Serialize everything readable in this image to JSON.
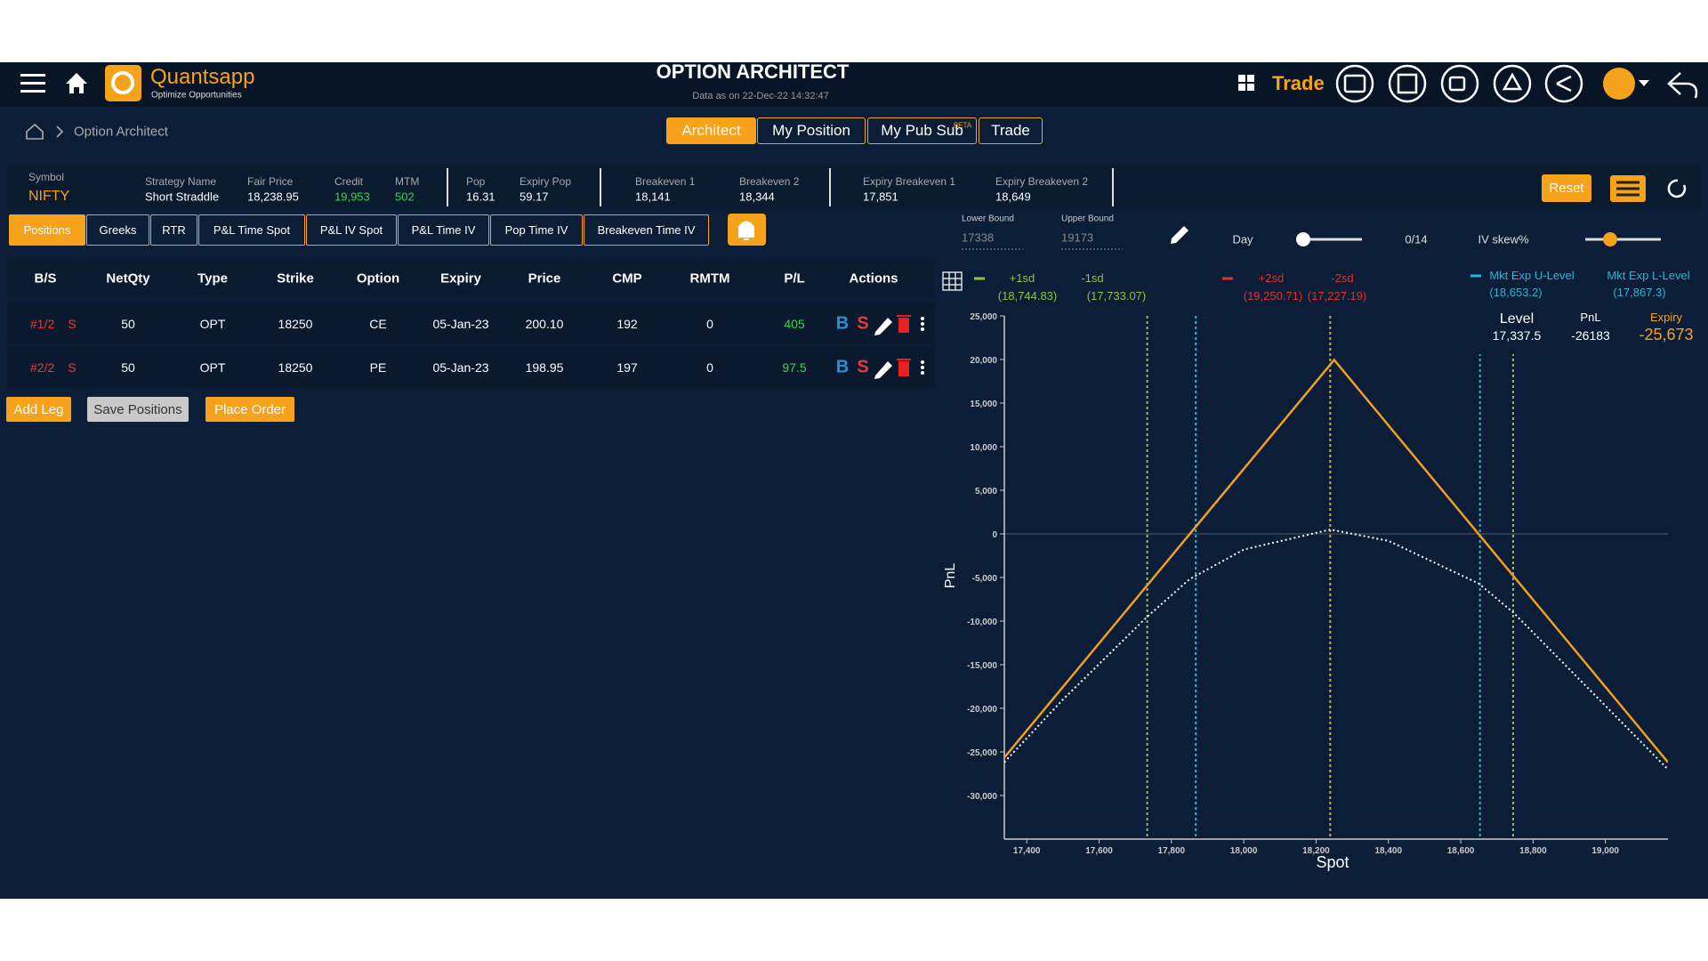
{
  "header": {
    "brand": "Quantsapp",
    "tagline": "Optimize Opportunities",
    "title": "OPTION ARCHITECT",
    "subtitle": "Data as on 22-Dec-22 14:32:47",
    "trade": "Trade"
  },
  "breadcrumb": "Option Architect",
  "tabs": [
    "Architect",
    "My Position",
    "My Pub Sub",
    "Trade"
  ],
  "beta": "BETA",
  "summary": [
    {
      "label": "Symbol",
      "value": "NIFTY"
    },
    {
      "label": "Strategy Name",
      "value": "Short Straddle"
    },
    {
      "label": "Fair Price",
      "value": "18,238.95"
    },
    {
      "label": "Credit",
      "value": "19,953"
    },
    {
      "label": "MTM",
      "value": "502"
    },
    {
      "label": "Pop",
      "value": "16.31"
    },
    {
      "label": "Expiry Pop",
      "value": "59.17"
    },
    {
      "label": "Breakeven 1",
      "value": "18,141"
    },
    {
      "label": "Breakeven 2",
      "value": "18,344"
    },
    {
      "label": "Expiry Breakeven 1",
      "value": "17,851"
    },
    {
      "label": "Expiry Breakeven 2",
      "value": "18,649"
    }
  ],
  "reset": "Reset",
  "subtabs": [
    "Positions",
    "Greeks",
    "RTR",
    "P&L Time Spot",
    "P&L IV Spot",
    "P&L Time IV",
    "Pop Time IV",
    "Breakeven Time IV"
  ],
  "controls": {
    "lower_label": "Lower Bound",
    "lower_value": "17338",
    "upper_label": "Upper Bound",
    "upper_value": "19173",
    "day": "Day",
    "day_value": "0/14",
    "iv_skew": "IV skew%"
  },
  "table": {
    "columns": [
      "B/S",
      "NetQty",
      "Type",
      "Strike",
      "Option",
      "Expiry",
      "Price",
      "CMP",
      "RMTM",
      "P/L",
      "Actions"
    ],
    "rows": [
      [
        "#1/2",
        "S",
        "50",
        "OPT",
        "18250",
        "CE",
        "05-Jan-23",
        "200.10",
        "192",
        "0",
        "405"
      ],
      [
        "#2/2",
        "S",
        "50",
        "OPT",
        "18250",
        "PE",
        "05-Jan-23",
        "198.95",
        "197",
        "0",
        "97.5"
      ]
    ],
    "actions": [
      "B",
      "S"
    ]
  },
  "buttons": [
    "Add Leg",
    "Save Positions",
    "Place Order"
  ],
  "tooltip": {
    "labels": [
      "Level",
      "PnL",
      "Expiry"
    ],
    "values": [
      "17,337.5",
      "-26183",
      "-25,673"
    ]
  },
  "chart_data": {
    "type": "line",
    "ylabel": "PnL",
    "xlabel": "Spot",
    "xlim": [
      17338,
      19173
    ],
    "ylim": [
      -35000,
      25000
    ],
    "xticks": [
      {
        "value": 17400,
        "label": "17,400"
      },
      {
        "value": 17600,
        "label": "17,600"
      },
      {
        "value": 17800,
        "label": "17,800"
      },
      {
        "value": 18000,
        "label": "18,000"
      },
      {
        "value": 18200,
        "label": "18,200"
      },
      {
        "value": 18400,
        "label": "18,400"
      },
      {
        "value": 18600,
        "label": "18,600"
      },
      {
        "value": 18800,
        "label": "18,800"
      },
      {
        "value": 19000,
        "label": "19,000"
      }
    ],
    "yticks": [
      {
        "value": 25000,
        "label": "25,000"
      },
      {
        "value": 20000,
        "label": "20,000"
      },
      {
        "value": 15000,
        "label": "15,000"
      },
      {
        "value": 10000,
        "label": "10,000"
      },
      {
        "value": 5000,
        "label": "5,000"
      },
      0,
      {
        "value": -5000,
        "label": "-5,000"
      },
      {
        "value": -10000,
        "label": "-10,000"
      },
      {
        "value": -15000,
        "label": "-15,000"
      },
      {
        "value": -20000,
        "label": "-20,000"
      },
      {
        "value": -25000,
        "label": "-25,000"
      },
      {
        "value": -30000,
        "label": "-30,000"
      }
    ],
    "series": [
      {
        "color": "#f0a020",
        "dash": false,
        "x": [
          17337.5,
          18250,
          19173
        ],
        "values": [
          -25673,
          19953,
          -26197
        ]
      },
      {
        "color": "#ffffff",
        "dash": true,
        "x": [
          17338,
          17500,
          17733,
          17850,
          18000,
          18240,
          18400,
          18650,
          18745,
          18900,
          19173
        ],
        "values": [
          -26183,
          -19000,
          -9500,
          -5200,
          -1800,
          502,
          -800,
          -5700,
          -9000,
          -15500,
          -27000
        ]
      }
    ],
    "legend": [
      {
        "name": "+1sd",
        "value": 18744.83,
        "value_label": "(18,744.83)",
        "color": "#8dc63f"
      },
      {
        "name": "-1sd",
        "value": 17733.07,
        "value_label": "(17,733.07)",
        "color": "#8dc63f"
      },
      {
        "name": "+2sd",
        "value": 19250.71,
        "value_label": "(19,250.71)",
        "color": "#e03030"
      },
      {
        "name": "-2sd",
        "value": 17227.19,
        "value_label": "(17,227.19)",
        "color": "#e03030"
      },
      {
        "name": "Mkt Exp U-Level",
        "value": 18653.2,
        "value_label": "(18,653.2)",
        "color": "#1fb8d6"
      },
      {
        "name": "Mkt Exp L-Level",
        "value": 17867.3,
        "value_label": "(17,867.3)",
        "color": "#1fb8d6"
      }
    ],
    "spot_marker": 18239,
    "spot_color": "#f0a020"
  }
}
